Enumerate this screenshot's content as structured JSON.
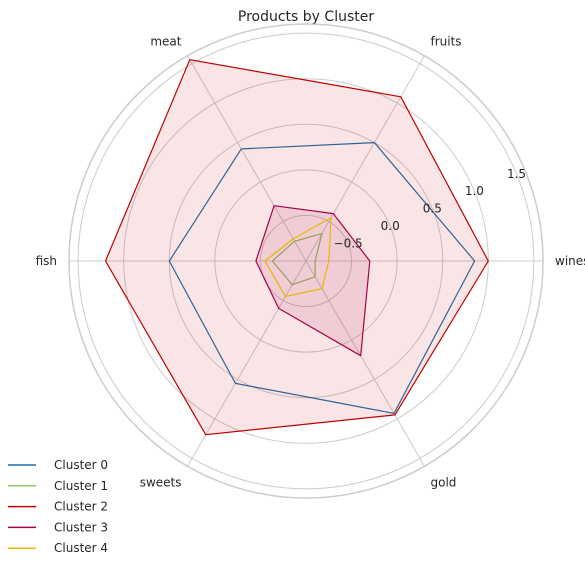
{
  "chart_data": {
    "type": "radar",
    "title": "Products by Cluster",
    "categories": [
      "wines",
      "fruits",
      "meat",
      "fish",
      "sweets",
      "gold"
    ],
    "rlim": [
      -1.0,
      1.6
    ],
    "rticks": [
      -0.5,
      0.0,
      0.5,
      1.0,
      1.5
    ],
    "rtick_labels": [
      "−0.5",
      "0.0",
      "0.5",
      "1.0",
      "1.5"
    ],
    "grid": true,
    "legend_position": "bottom-left",
    "series": [
      {
        "name": "Cluster 0",
        "color": "#1f6fa8",
        "values": [
          0.85,
          0.5,
          0.42,
          0.5,
          0.55,
          0.93
        ],
        "fill": false
      },
      {
        "name": "Cluster 1",
        "color": "#8fc66a",
        "values": [
          -0.9,
          -0.65,
          -0.75,
          -0.63,
          -0.7,
          -0.8
        ],
        "fill": false
      },
      {
        "name": "Cluster 2",
        "color": "#c00000",
        "values": [
          1.0,
          1.08,
          1.55,
          1.2,
          1.2,
          0.95
        ],
        "fill": true
      },
      {
        "name": "Cluster 3",
        "color": "#a8004f",
        "values": [
          -0.3,
          -0.4,
          -0.3,
          -0.45,
          -0.4,
          0.2
        ],
        "fill": true
      },
      {
        "name": "Cluster 4",
        "color": "#e6b800",
        "values": [
          -0.75,
          -0.45,
          -0.72,
          -0.55,
          -0.55,
          -0.65
        ],
        "fill": false
      }
    ]
  }
}
